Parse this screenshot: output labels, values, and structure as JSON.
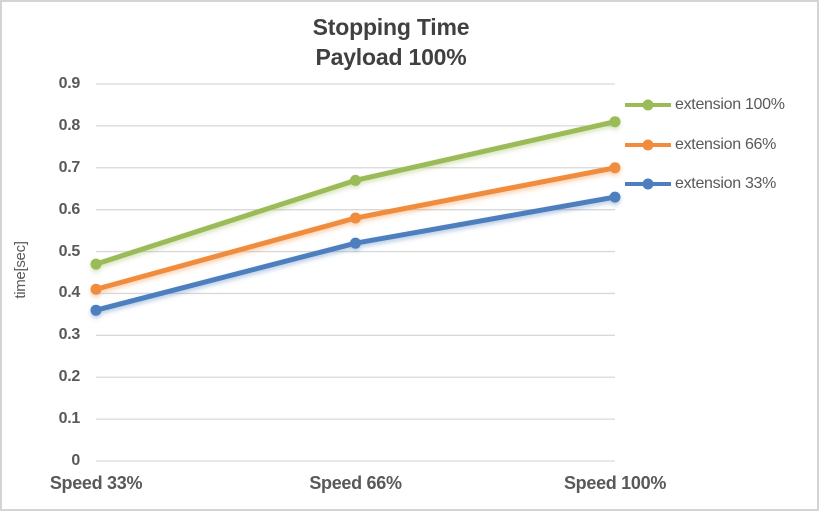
{
  "canvas": {
    "background": "#FFFFFF",
    "border_color": "#D4D4D4"
  },
  "chart_data": {
    "type": "line",
    "title": "Stopping Time",
    "subtitle": "Payload 100%",
    "ylabel": "time[sec]",
    "xlabel": "",
    "categories": [
      "Speed 33%",
      "Speed 66%",
      "Speed 100%"
    ],
    "series": [
      {
        "name": "extension 100%",
        "color": "#9BBB59",
        "values": [
          0.47,
          0.67,
          0.81
        ]
      },
      {
        "name": "extension 66%",
        "color": "#F08C3C",
        "values": [
          0.41,
          0.58,
          0.7
        ]
      },
      {
        "name": "extension 33%",
        "color": "#4D7EBD",
        "values": [
          0.36,
          0.52,
          0.63
        ]
      }
    ],
    "ylim": [
      0,
      0.9
    ],
    "ytick_labels": [
      "0",
      "0.1",
      "0.2",
      "0.3",
      "0.4",
      "0.5",
      "0.6",
      "0.7",
      "0.8",
      "0.9"
    ],
    "grid": true,
    "gridline_color": "#D9D9D9",
    "legend_position": "right",
    "axis_text_color": "#595959",
    "title_color": "#404040"
  }
}
